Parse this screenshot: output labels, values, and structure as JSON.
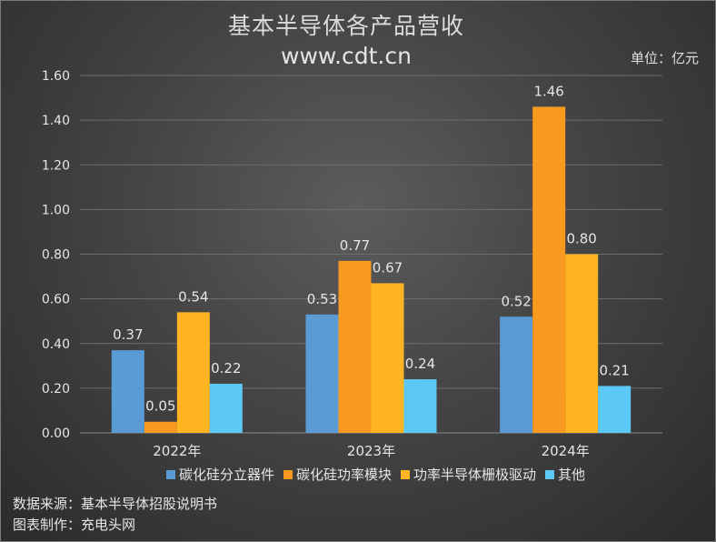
{
  "chart_data": {
    "type": "bar",
    "title": "基本半导体各产品营收",
    "subtitle": "www.cdt.cn",
    "unit_label": "单位：亿元",
    "categories": [
      "2022年",
      "2023年",
      "2024年"
    ],
    "series": [
      {
        "name": "碳化硅分立器件",
        "color": "#5b9bd5",
        "values": [
          0.37,
          0.53,
          0.52
        ]
      },
      {
        "name": "碳化硅功率模块",
        "color": "#f79a1f",
        "values": [
          0.05,
          0.77,
          1.46
        ]
      },
      {
        "name": "功率半导体栅极驱动",
        "color": "#ffb522",
        "values": [
          0.54,
          0.67,
          0.8
        ]
      },
      {
        "name": "其他",
        "color": "#5bc8f5",
        "values": [
          0.22,
          0.24,
          0.21
        ]
      }
    ],
    "value_labels": [
      [
        "0.37",
        "0.53",
        "0.52"
      ],
      [
        "0.05",
        "0.77",
        "1.46"
      ],
      [
        "0.54",
        "0.67",
        "0.80"
      ],
      [
        "0.22",
        "0.24",
        "0.21"
      ]
    ],
    "ylim": [
      0,
      1.6
    ],
    "yticks": [
      "0.00",
      "0.20",
      "0.40",
      "0.60",
      "0.80",
      "1.00",
      "1.20",
      "1.40",
      "1.60"
    ],
    "grid": true,
    "legend_position": "bottom"
  },
  "footer": {
    "source": "数据来源：基本半导体招股说明书",
    "author": "图表制作：充电头网"
  }
}
